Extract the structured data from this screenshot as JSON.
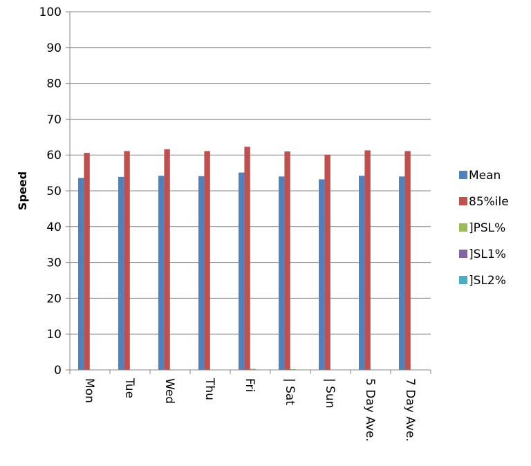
{
  "chart_data": {
    "type": "bar",
    "title": "",
    "xlabel": "",
    "ylabel": "Speed",
    "ylim": [
      0,
      100
    ],
    "yticks": [
      0,
      10,
      20,
      30,
      40,
      50,
      60,
      70,
      80,
      90,
      100
    ],
    "grid": true,
    "legend_position": "right",
    "categories": [
      "Mon",
      "Tue",
      "Wed",
      "Thu",
      "Fri",
      "| Sat",
      "| Sun",
      "5 Day Ave.",
      "7 Day Ave."
    ],
    "series": [
      {
        "name": "Mean",
        "color": "#4F81BD",
        "values": [
          53.6,
          53.9,
          54.2,
          54.1,
          55.1,
          54.0,
          53.2,
          54.2,
          54.0
        ]
      },
      {
        "name": "85%ile",
        "color": "#C0504D",
        "values": [
          60.6,
          61.1,
          61.6,
          61.1,
          62.3,
          61.0,
          60.1,
          61.3,
          61.1
        ]
      },
      {
        "name": "]PSL%",
        "color": "#9BBB59",
        "values": [
          0.0,
          0.0,
          0.0,
          0.0,
          0.3,
          0.2,
          0.0,
          0.0,
          0.0
        ]
      },
      {
        "name": "]SL1%",
        "color": "#8064A2",
        "values": [
          0,
          0,
          0,
          0,
          0,
          0,
          0,
          0,
          0
        ]
      },
      {
        "name": "]SL2%",
        "color": "#4BACC6",
        "values": [
          0,
          0,
          0,
          0,
          0,
          0,
          0,
          0,
          0
        ]
      }
    ]
  }
}
